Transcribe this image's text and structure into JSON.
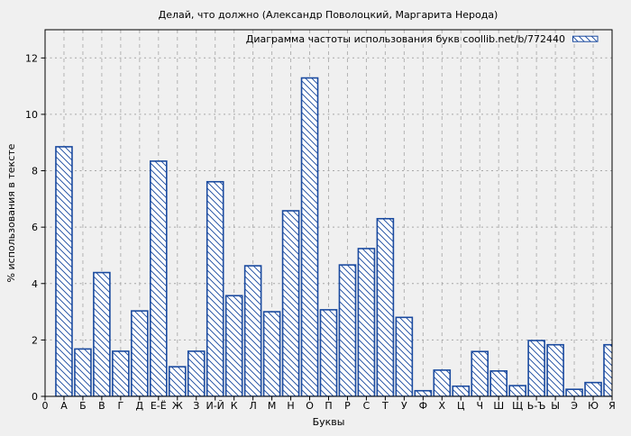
{
  "chart_data": {
    "type": "bar",
    "title": "Делай, что должно (Александр Поволоцкий, Маргарита Нерода)",
    "legend_label": "Диаграмма частоты использования букв coollib.net/b/772440",
    "xlabel": "Буквы",
    "ylabel": "% использования в тексте",
    "origin_tick_label": "0",
    "categories": [
      "А",
      "Б",
      "В",
      "Г",
      "Д",
      "Е-Ё",
      "Ж",
      "З",
      "И-Й",
      "К",
      "Л",
      "М",
      "Н",
      "О",
      "П",
      "Р",
      "С",
      "Т",
      "У",
      "Ф",
      "Х",
      "Ц",
      "Ч",
      "Ш",
      "Щ",
      "Ь-Ъ",
      "Ы",
      "Э",
      "Ю",
      "Я"
    ],
    "values": [
      8.85,
      1.68,
      4.39,
      1.6,
      3.03,
      8.34,
      1.05,
      1.6,
      7.61,
      3.57,
      4.63,
      3.0,
      6.58,
      11.29,
      3.07,
      4.66,
      5.24,
      6.3,
      2.8,
      0.2,
      0.93,
      0.36,
      1.59,
      0.9,
      0.38,
      1.98,
      1.83,
      0.25,
      0.49,
      1.83
    ],
    "yticks": [
      0,
      2,
      4,
      6,
      8,
      10,
      12
    ],
    "ylim": [
      0,
      13
    ],
    "grid": true,
    "legend_position": "top-right",
    "bar_color": "#1a4a9f",
    "background": "#f0f0f0"
  }
}
